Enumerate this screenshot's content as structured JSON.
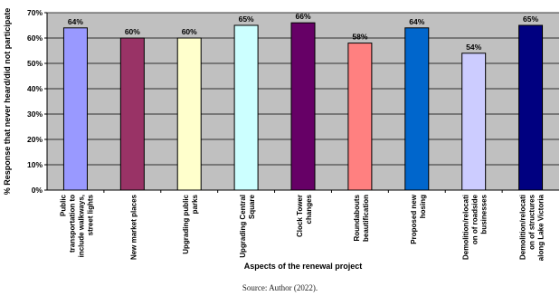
{
  "chart_data": {
    "type": "bar",
    "title": "",
    "xlabel": "Aspects of the renewal project",
    "ylabel": "% Response that never heard/did not participate",
    "ylim": [
      0,
      70
    ],
    "yticks": [
      "0%",
      "10%",
      "20%",
      "30%",
      "40%",
      "50%",
      "60%",
      "70%"
    ],
    "grid": true,
    "plot_background": "#c0c0c0",
    "categories": [
      "Public transportation to include walkways, street lights",
      "New market places",
      "Upgrading public parks",
      "Upgrading Central Square",
      "Clock Tower changes",
      "Roundabouts beautification",
      "Proposed new hosing",
      "Demolition/relocation of roadside businesses",
      "Demolition/relocation of structures along Lake Victoria"
    ],
    "category_lines": [
      [
        "Public",
        "transportation to",
        "include walkways,",
        "street lights"
      ],
      [
        "New market places"
      ],
      [
        "Upgrading public",
        "parks"
      ],
      [
        "Upgrading Central",
        "Square"
      ],
      [
        "Clock Tower",
        "changes"
      ],
      [
        "Roundabouts",
        "beautification"
      ],
      [
        "Proposed new",
        "hosing"
      ],
      [
        "Demolition/relocati",
        "on of roadside",
        "businesses"
      ],
      [
        "Demolition/relocati",
        "on of structures",
        "along Lake Victoria"
      ]
    ],
    "values": [
      64,
      60,
      60,
      65,
      66,
      58,
      64,
      54,
      65
    ],
    "value_labels": [
      "64%",
      "60%",
      "60%",
      "65%",
      "66%",
      "58%",
      "64%",
      "54%",
      "65%"
    ],
    "colors": [
      "#9999ff",
      "#993366",
      "#ffffcc",
      "#ccffff",
      "#660066",
      "#ff8080",
      "#0066cc",
      "#ccccff",
      "#000080"
    ]
  },
  "source": "Source: Author (2022)."
}
